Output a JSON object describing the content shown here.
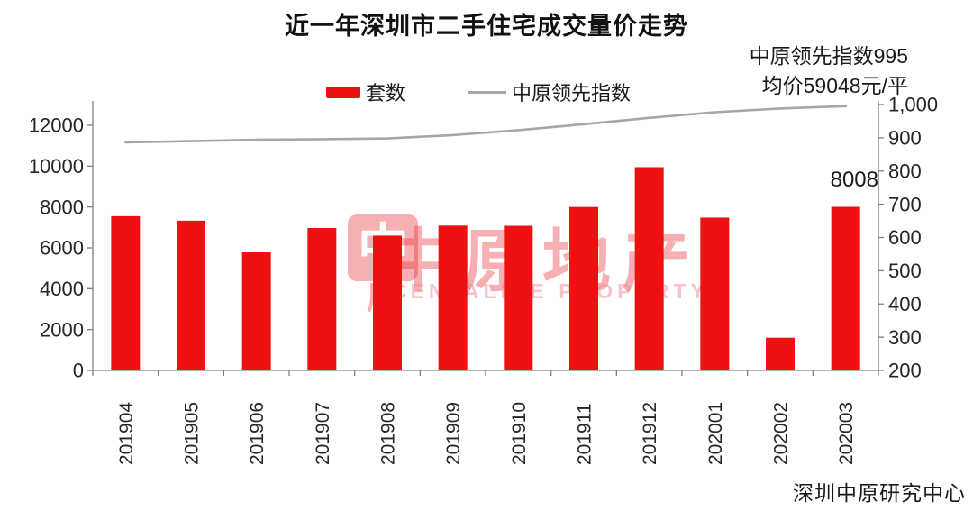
{
  "title": "近一年深圳市二手住宅成交量价走势",
  "annotation": {
    "index_line": "中原领先指数995",
    "price_line": "均价59048元/平"
  },
  "legend": {
    "bar_label": "套数",
    "line_label": "中原领先指数"
  },
  "bar_value_label": "8008",
  "source": "深圳中原研究中心",
  "watermark": {
    "seal_char_top": "中",
    "seal_char_bottom": "原",
    "brand": "中原地产",
    "brand_en": "CENTALINE PROPERTY"
  },
  "colors": {
    "bar": "#ee1111",
    "line": "#a6a6a6",
    "axis": "#808080",
    "tick_text": "#262626",
    "watermark_red": "rgba(232,45,53,0.38)",
    "watermark_pink": "rgba(240,140,148,0.5)"
  },
  "chart_data": {
    "type": "bar",
    "subtype": "combo-bar-line",
    "title": "近一年深圳市二手住宅成交量价走势",
    "categories": [
      "201904",
      "201905",
      "201906",
      "201907",
      "201908",
      "201909",
      "201910",
      "201911",
      "201912",
      "202001",
      "202002",
      "202003"
    ],
    "series": [
      {
        "name": "套数",
        "type": "bar",
        "axis": "left",
        "values": [
          7550,
          7330,
          5780,
          6970,
          6600,
          7090,
          7080,
          8000,
          9950,
          7480,
          1600,
          8008
        ]
      },
      {
        "name": "中原领先指数",
        "type": "line",
        "axis": "right",
        "values": [
          886,
          890,
          894,
          896,
          898,
          908,
          923,
          941,
          960,
          977,
          988,
          995
        ]
      }
    ],
    "left_axis": {
      "min": 0,
      "max": 12000,
      "step": 2000,
      "tick_labels": [
        "0",
        "2000",
        "4000",
        "6000",
        "8000",
        "10000",
        "12000"
      ]
    },
    "right_axis": {
      "min": 200,
      "max": 1000,
      "step": 100,
      "tick_labels": [
        "200",
        "300",
        "400",
        "500",
        "600",
        "700",
        "800",
        "900",
        "1,000"
      ]
    },
    "grid": false,
    "legend_position": "top",
    "annotations": [
      {
        "text": "8008",
        "target": "202003"
      },
      {
        "text": "中原领先指数995",
        "position": "top-right"
      },
      {
        "text": "均价59048元/平",
        "position": "top-right"
      }
    ]
  }
}
